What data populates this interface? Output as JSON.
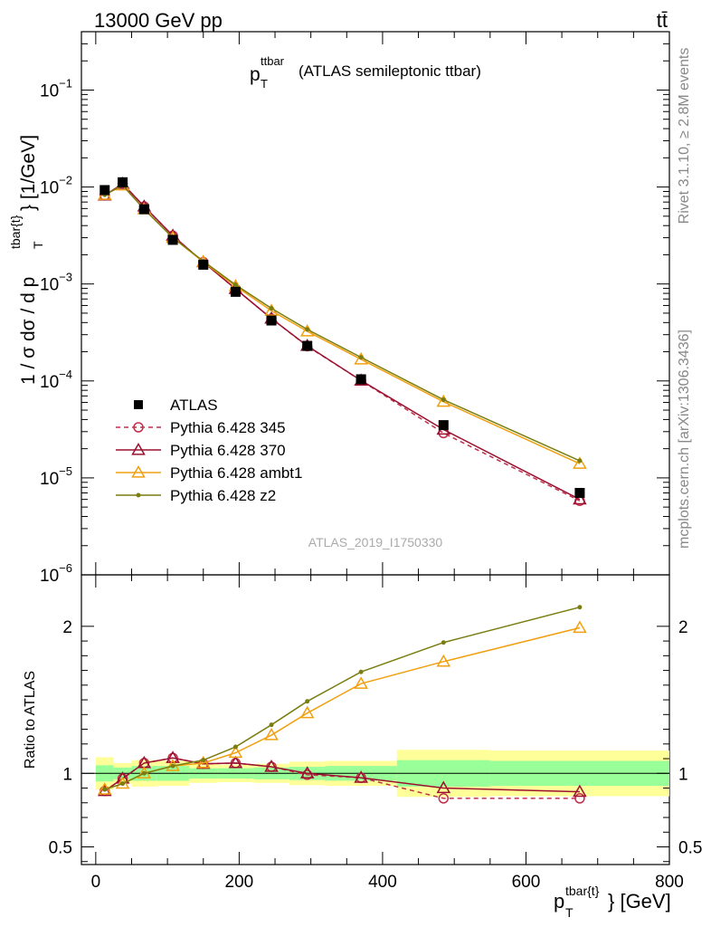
{
  "header": {
    "energy": "13000 GeV pp",
    "process": "tt̄"
  },
  "side": {
    "rivet": "Rivet 3.1.10, ≥ 2.8M events",
    "source": "mcplots.cern.ch [arXiv:1306.3436]"
  },
  "chart_data": [
    {
      "type": "line",
      "title": "p_T^{ttbar} (ATLAS semileptonic ttbar)",
      "title_main": "p",
      "title_sub": "T",
      "title_sup": "ttbar",
      "title_rest": "(ATLAS semileptonic ttbar)",
      "analysis_label": "ATLAS_2019_I1750330",
      "ylabel": "1 / σ dσ / d p_T^{tbar{t}} [1/GeV]",
      "ylabel_pre": "1 / σ dσ / d p",
      "ylabel_sub": "T",
      "ylabel_sup": "tbar{t}",
      "ylabel_post": "} [1/GeV]",
      "yscale": "log",
      "ylim": [
        1e-06,
        0.4
      ],
      "xlim": [
        -20,
        800
      ],
      "y_ticks": [
        {
          "v": 1e-06,
          "base": "10",
          "exp": "−6"
        },
        {
          "v": 1e-05,
          "base": "10",
          "exp": "−5"
        },
        {
          "v": 0.0001,
          "base": "10",
          "exp": "−4"
        },
        {
          "v": 0.001,
          "base": "10",
          "exp": "−3"
        },
        {
          "v": 0.01,
          "base": "10",
          "exp": "−2"
        },
        {
          "v": 0.1,
          "base": "10",
          "exp": "−1"
        }
      ],
      "x": [
        12.5,
        37.5,
        67.5,
        107.5,
        150,
        195,
        245,
        295,
        370,
        485,
        675
      ],
      "data": {
        "name": "ATLAS",
        "values": [
          0.0093,
          0.0112,
          0.0059,
          0.00285,
          0.00158,
          0.00083,
          0.00042,
          0.00023,
          0.000104,
          3.5e-05,
          7e-06
        ]
      },
      "series": [
        {
          "name": "Pythia 6.428 345",
          "color": "#c0304a",
          "marker": "circle",
          "dash": "dashed",
          "values": [
            0.0082,
            0.0108,
            0.0063,
            0.00315,
            0.00168,
            0.00089,
            0.00044,
            0.000228,
            0.000101,
            2.9e-05,
            5.8e-06
          ]
        },
        {
          "name": "Pythia 6.428 370",
          "color": "#9b1030",
          "marker": "triangle",
          "dash": "solid",
          "values": [
            0.0082,
            0.0108,
            0.0063,
            0.00315,
            0.00168,
            0.00089,
            0.00044,
            0.00023,
            0.000101,
            3.15e-05,
            6e-06
          ]
        },
        {
          "name": "Pythia 6.428 ambt1",
          "color": "#f0a010",
          "marker": "triangle",
          "dash": "solid",
          "values": [
            0.0083,
            0.0104,
            0.0059,
            0.003,
            0.00169,
            0.00095,
            0.00053,
            0.000325,
            0.000167,
            6.1e-05,
            1.4e-05
          ]
        },
        {
          "name": "Pythia 6.428 z2",
          "color": "#7a7d10",
          "marker": "dot",
          "dash": "solid",
          "values": [
            0.0083,
            0.0104,
            0.0059,
            0.003,
            0.00172,
            0.00098,
            0.00056,
            0.00034,
            0.000175,
            6.4e-05,
            1.5e-05
          ]
        }
      ],
      "legend_placement": "lower-left"
    },
    {
      "type": "line",
      "ylabel": "Ratio to ATLAS",
      "xlabel": "p_T^{tbar{t}} [GeV]",
      "xlabel_pre": "p",
      "xlabel_sub": "T",
      "xlabel_sup": "tbar{t}",
      "xlabel_post": "} [GeV]",
      "xlim": [
        -20,
        800
      ],
      "ylim": [
        0.38,
        2.35
      ],
      "x_ticks": [
        "0",
        "200",
        "400",
        "600",
        "800"
      ],
      "y_ticks": [
        "0.5",
        "1",
        "2"
      ],
      "reference": 1,
      "bands": [
        {
          "x0": 0,
          "x1": 25,
          "inner": 0.055,
          "outer": 0.11
        },
        {
          "x0": 25,
          "x1": 50,
          "inner": 0.04,
          "outer": 0.07
        },
        {
          "x0": 50,
          "x1": 85,
          "inner": 0.05,
          "outer": 0.09
        },
        {
          "x0": 85,
          "x1": 130,
          "inner": 0.05,
          "outer": 0.085
        },
        {
          "x0": 130,
          "x1": 170,
          "inner": 0.035,
          "outer": 0.065
        },
        {
          "x0": 170,
          "x1": 220,
          "inner": 0.035,
          "outer": 0.06
        },
        {
          "x0": 220,
          "x1": 270,
          "inner": 0.04,
          "outer": 0.065
        },
        {
          "x0": 270,
          "x1": 320,
          "inner": 0.045,
          "outer": 0.08
        },
        {
          "x0": 320,
          "x1": 420,
          "inner": 0.05,
          "outer": 0.085
        },
        {
          "x0": 420,
          "x1": 550,
          "inner": 0.09,
          "outer": 0.16
        },
        {
          "x0": 550,
          "x1": 800,
          "inner": 0.085,
          "outer": 0.155
        }
      ],
      "x": [
        12.5,
        37.5,
        67.5,
        107.5,
        150,
        195,
        245,
        295,
        370,
        485,
        675
      ],
      "series": [
        {
          "name": "Pythia 6.428 345",
          "color": "#c0304a",
          "marker": "circle",
          "dash": "dashed",
          "values": [
            0.88,
            0.965,
            1.07,
            1.105,
            1.065,
            1.07,
            1.045,
            0.99,
            0.97,
            0.83,
            0.83
          ]
        },
        {
          "name": "Pythia 6.428 370",
          "color": "#9b1030",
          "marker": "triangle",
          "dash": "solid",
          "values": [
            0.88,
            0.965,
            1.07,
            1.105,
            1.065,
            1.07,
            1.045,
            1.0,
            0.97,
            0.9,
            0.875
          ]
        },
        {
          "name": "Pythia 6.428 ambt1",
          "color": "#f0a010",
          "marker": "triangle",
          "dash": "solid",
          "values": [
            0.89,
            0.93,
            1.0,
            1.05,
            1.07,
            1.14,
            1.26,
            1.41,
            1.61,
            1.76,
            1.99
          ]
        },
        {
          "name": "Pythia 6.428 z2",
          "color": "#7a7d10",
          "marker": "dot",
          "dash": "solid",
          "values": [
            0.89,
            0.93,
            1.0,
            1.05,
            1.09,
            1.18,
            1.33,
            1.49,
            1.69,
            1.89,
            2.13
          ]
        }
      ]
    }
  ]
}
